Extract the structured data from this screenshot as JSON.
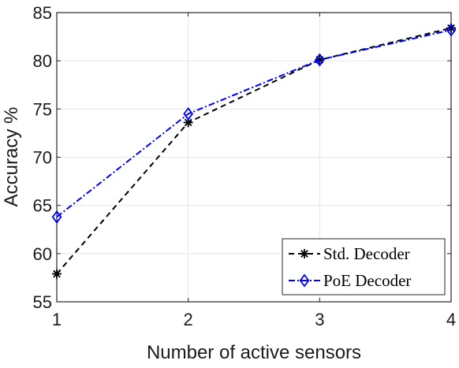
{
  "chart_data": {
    "type": "line",
    "title": "",
    "xlabel": "Number of active sensors",
    "ylabel": "Accuracy %",
    "x": [
      1,
      2,
      3,
      4
    ],
    "xticks": [
      "1",
      "2",
      "3",
      "4"
    ],
    "yticks": [
      "55",
      "60",
      "65",
      "70",
      "75",
      "80",
      "85"
    ],
    "xlim": [
      1,
      4
    ],
    "ylim": [
      55,
      85
    ],
    "grid": true,
    "legend_position": "bottom-right",
    "series": [
      {
        "name": "Std. Decoder",
        "values": [
          57.9,
          73.6,
          80.1,
          83.4
        ],
        "color": "#000000",
        "line_style": "dashed",
        "marker": "asterisk"
      },
      {
        "name": "PoE Decoder",
        "values": [
          63.8,
          74.5,
          80.1,
          83.2
        ],
        "color": "#0000ff",
        "line_style": "dash-dot",
        "marker": "diamond"
      }
    ]
  }
}
